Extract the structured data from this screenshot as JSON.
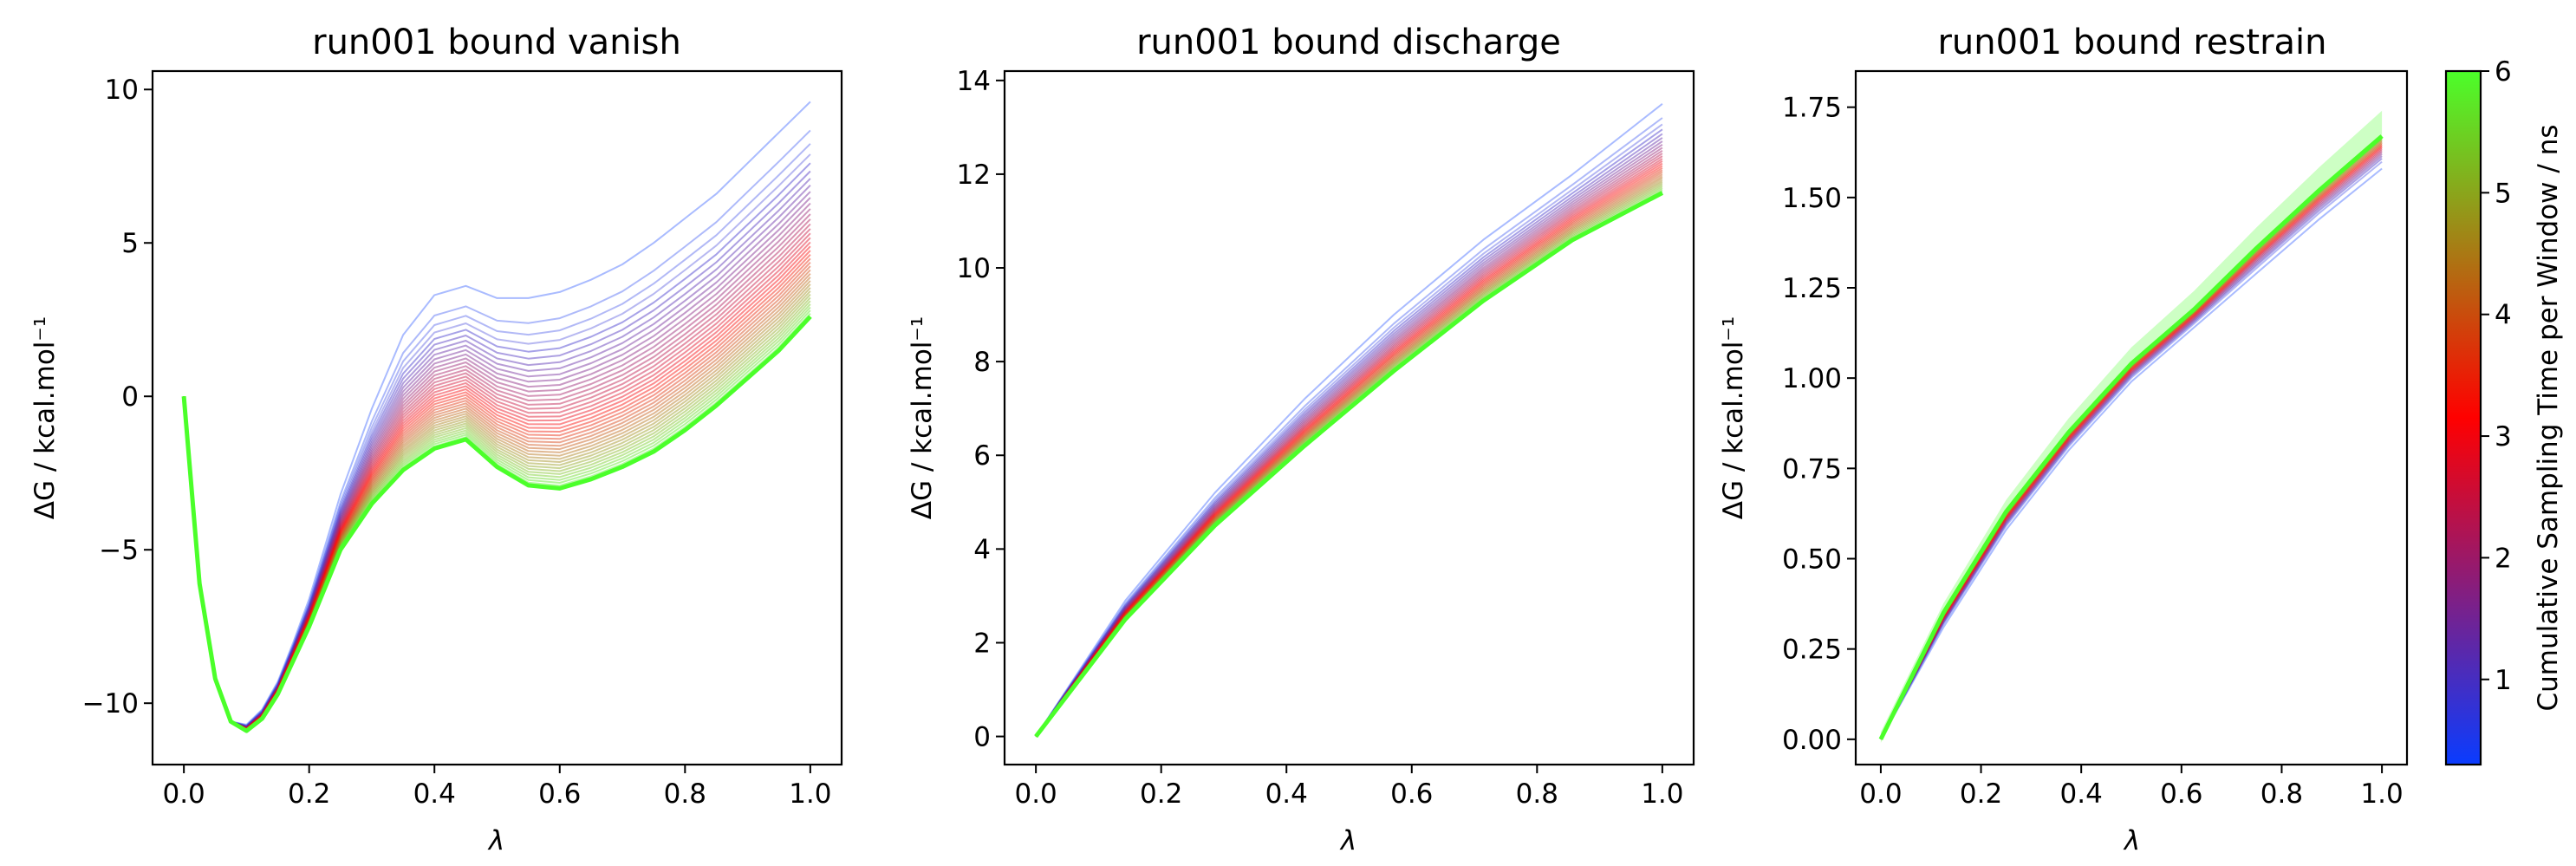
{
  "colors": {
    "start": "#0a3cff",
    "mid": "#ff0000",
    "end": "#4bff2a"
  },
  "chart_data": [
    {
      "type": "line",
      "title": "run001 bound vanish",
      "xlabel": "λ",
      "ylabel": "ΔG / kcal.mol⁻¹",
      "xlim": [
        -0.05,
        1.05
      ],
      "ylim": [
        -12.0,
        10.6
      ],
      "xticks": [
        0.0,
        0.2,
        0.4,
        0.6,
        0.8,
        1.0
      ],
      "xtick_labels": [
        "0.0",
        "0.2",
        "0.4",
        "0.6",
        "0.8",
        "1.0"
      ],
      "yticks": [
        -10,
        -5,
        0,
        5,
        10
      ],
      "ytick_labels": [
        "−10",
        "−5",
        "0",
        "5",
        "10"
      ],
      "grid": false,
      "final_series": {
        "name": "",
        "x": [
          0.0,
          0.025,
          0.05,
          0.075,
          0.1,
          0.125,
          0.15,
          0.175,
          0.2,
          0.25,
          0.3,
          0.35,
          0.4,
          0.45,
          0.5,
          0.55,
          0.6,
          0.65,
          0.7,
          0.75,
          0.8,
          0.85,
          0.9,
          0.95,
          1.0
        ],
        "y": [
          0.0,
          -6.1,
          -9.2,
          -10.6,
          -10.9,
          -10.5,
          -9.7,
          -8.6,
          -7.5,
          -5.0,
          -3.5,
          -2.4,
          -1.7,
          -1.4,
          -2.3,
          -2.9,
          -3.0,
          -2.7,
          -2.3,
          -1.8,
          -1.1,
          -0.3,
          0.6,
          1.5,
          2.6
        ]
      },
      "first_series": {
        "name": "",
        "x": [
          0.0,
          0.025,
          0.05,
          0.075,
          0.1,
          0.125,
          0.15,
          0.175,
          0.2,
          0.25,
          0.3,
          0.35,
          0.4,
          0.45,
          0.5,
          0.55,
          0.6,
          0.65,
          0.7,
          0.75,
          0.8,
          0.85,
          0.9,
          0.95,
          1.0
        ],
        "y": [
          0.0,
          -6.1,
          -9.2,
          -10.6,
          -10.7,
          -10.2,
          -9.3,
          -8.0,
          -6.6,
          -3.2,
          -0.4,
          2.0,
          3.3,
          3.6,
          3.2,
          3.2,
          3.4,
          3.8,
          4.3,
          5.0,
          5.8,
          6.6,
          7.6,
          8.6,
          9.6
        ]
      },
      "n_traces": 40
    },
    {
      "type": "line",
      "title": "run001 bound discharge",
      "xlabel": "λ",
      "ylabel": "ΔG / kcal.mol⁻¹",
      "xlim": [
        -0.05,
        1.05
      ],
      "ylim": [
        -0.6,
        14.2
      ],
      "xticks": [
        0.0,
        0.2,
        0.4,
        0.6,
        0.8,
        1.0
      ],
      "xtick_labels": [
        "0.0",
        "0.2",
        "0.4",
        "0.6",
        "0.8",
        "1.0"
      ],
      "yticks": [
        0,
        2,
        4,
        6,
        8,
        10,
        12,
        14
      ],
      "ytick_labels": [
        "0",
        "2",
        "4",
        "6",
        "8",
        "10",
        "12",
        "14"
      ],
      "grid": false,
      "final_series": {
        "name": "",
        "x": [
          0.0,
          0.1428,
          0.2857,
          0.4286,
          0.5714,
          0.7143,
          0.8571,
          1.0
        ],
        "y": [
          0.0,
          2.5,
          4.5,
          6.2,
          7.8,
          9.3,
          10.6,
          11.6
        ]
      },
      "first_series": {
        "name": "",
        "x": [
          0.0,
          0.1428,
          0.2857,
          0.4286,
          0.5714,
          0.7143,
          0.8571,
          1.0
        ],
        "y": [
          0.0,
          2.9,
          5.2,
          7.2,
          9.0,
          10.6,
          12.0,
          13.5
        ]
      },
      "n_traces": 30
    },
    {
      "type": "line",
      "title": "run001 bound restrain",
      "xlabel": "λ",
      "ylabel": "ΔG / kcal.mol⁻¹",
      "xlim": [
        -0.05,
        1.05
      ],
      "ylim": [
        -0.07,
        1.85
      ],
      "xticks": [
        0.0,
        0.2,
        0.4,
        0.6,
        0.8,
        1.0
      ],
      "xtick_labels": [
        "0.0",
        "0.2",
        "0.4",
        "0.6",
        "0.8",
        "1.0"
      ],
      "yticks": [
        0.0,
        0.25,
        0.5,
        0.75,
        1.0,
        1.25,
        1.5,
        1.75
      ],
      "ytick_labels": [
        "0.00",
        "0.25",
        "0.50",
        "0.75",
        "1.00",
        "1.25",
        "1.50",
        "1.75"
      ],
      "grid": false,
      "final_series": {
        "name": "",
        "x": [
          0.0,
          0.125,
          0.25,
          0.375,
          0.5,
          0.625,
          0.75,
          0.875,
          1.0
        ],
        "y": [
          0.0,
          0.35,
          0.63,
          0.85,
          1.04,
          1.19,
          1.36,
          1.52,
          1.67
        ]
      },
      "first_series": {
        "name": "",
        "x": [
          0.0,
          0.125,
          0.25,
          0.375,
          0.5,
          0.625,
          0.75,
          0.875,
          1.0
        ],
        "y": [
          0.0,
          0.31,
          0.58,
          0.8,
          0.99,
          1.14,
          1.29,
          1.44,
          1.58
        ]
      },
      "band_halfwidth": 0.05,
      "n_traces": 18
    }
  ],
  "colorbar": {
    "label": "Cumulative Sampling Time per Window / ns",
    "min": 0.3,
    "max": 6.0,
    "ticks": [
      1,
      2,
      3,
      4,
      5,
      6
    ],
    "tick_labels": [
      "1",
      "2",
      "3",
      "4",
      "5",
      "6"
    ]
  }
}
